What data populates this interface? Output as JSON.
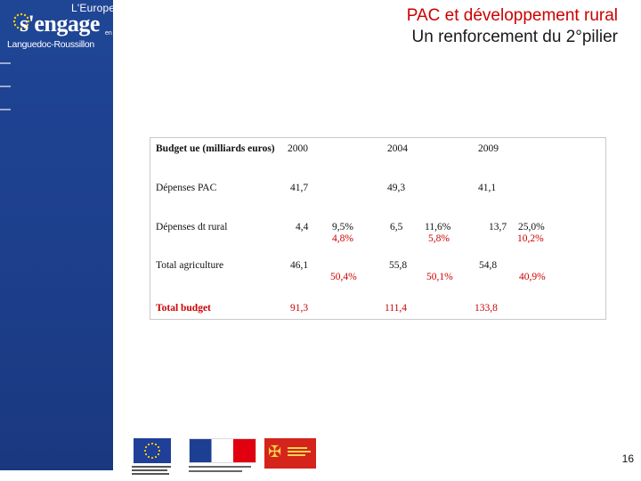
{
  "header": {
    "title_line1": "PAC et développement rural",
    "title_line2": "Un renforcement du 2°pilier"
  },
  "logo": {
    "europe": "L'Europe",
    "engage": "s'engage",
    "en": "en",
    "region": "Languedoc-Roussillon"
  },
  "table": {
    "header": {
      "label": "Budget ue (milliards euros)",
      "y2000": "2000",
      "y2004": "2004",
      "y2009": "2009"
    },
    "pac": {
      "label": "Dépenses PAC",
      "v2000": "41,7",
      "v2004": "49,3",
      "v2009": "41,1"
    },
    "rural": {
      "label": "Dépenses dt rural",
      "v2000": "4,4",
      "p2000a": "9,5%",
      "p2000b": "4,8%",
      "v2004": "6,5",
      "p2004a": "11,6%",
      "p2004b": "5,8%",
      "v2009": "13,7",
      "p2009a": "25,0%",
      "p2009b": "10,2%"
    },
    "agri": {
      "label": "Total agriculture",
      "v2000": "46,1",
      "p2000": "50,4%",
      "v2004": "55,8",
      "p2004": "50,1%",
      "v2009": "54,8",
      "p2009": "40,9%"
    },
    "total": {
      "label": "Total budget",
      "v2000": "91,3",
      "v2004": "111,4",
      "v2009": "133,8"
    }
  },
  "footer": {
    "page_number": "16"
  },
  "colors": {
    "band": "#1f4595",
    "title_red": "#cc0000",
    "value_red": "#cc0000"
  }
}
